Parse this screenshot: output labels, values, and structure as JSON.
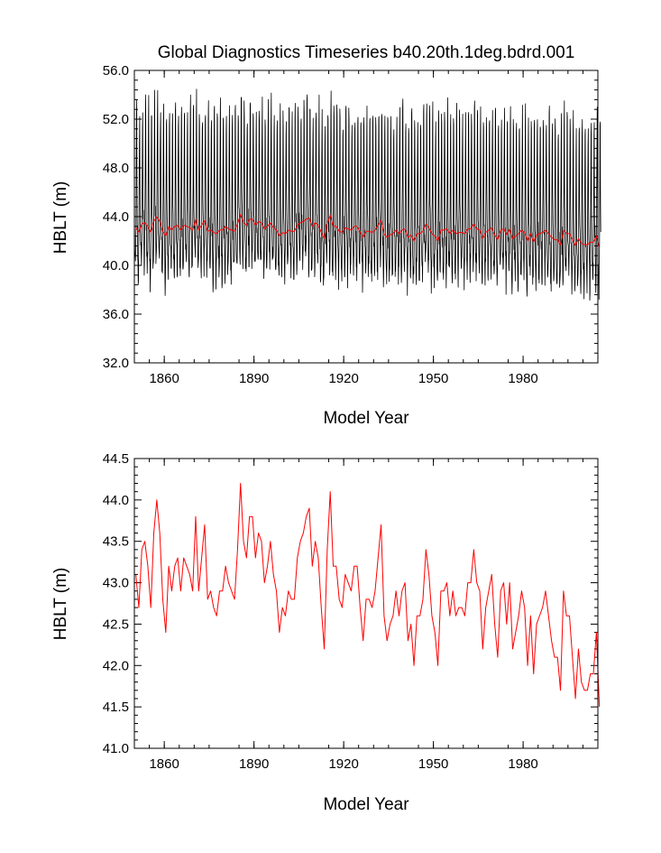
{
  "chart_data": [
    {
      "type": "line",
      "title": "Global Diagnostics Timeseries b40.20th.1deg.bdrd.001",
      "xlabel": "Model Year",
      "ylabel": "HBLT (m)",
      "xlim": [
        1850,
        2005
      ],
      "ylim": [
        32.0,
        56.0
      ],
      "xticks": [
        1860,
        1890,
        1920,
        1950,
        1980
      ],
      "xtick_labels": [
        "1860",
        "1890",
        "1920",
        "1950",
        "1980"
      ],
      "yticks": [
        32.0,
        36.0,
        40.0,
        44.0,
        48.0,
        52.0,
        56.0
      ],
      "ytick_labels": [
        "32.0",
        "36.0",
        "40.0",
        "44.0",
        "48.0",
        "52.0",
        "56.0"
      ],
      "series": [
        {
          "resolution": "monthly",
          "color": "#000000",
          "annual_cycle_multiplier": [
            -0.2,
            -1.4,
            -2.6,
            -3.6,
            -3.2,
            -1.6,
            0.6,
            4.4,
            8.8,
            9.6,
            3.0,
            0.4
          ],
          "monthly_noise_amplitude": 1.3
        },
        {
          "resolution": "annual",
          "color": "#ff0000",
          "same_as_panel": 2
        }
      ]
    },
    {
      "type": "line",
      "title": "",
      "xlabel": "Model Year",
      "ylabel": "HBLT (m)",
      "xlim": [
        1850,
        2005
      ],
      "ylim": [
        41.0,
        44.5
      ],
      "xticks": [
        1860,
        1890,
        1920,
        1950,
        1980
      ],
      "xtick_labels": [
        "1860",
        "1890",
        "1920",
        "1950",
        "1980"
      ],
      "yticks": [
        41.0,
        41.5,
        42.0,
        42.5,
        43.0,
        43.5,
        44.0,
        44.5
      ],
      "ytick_labels": [
        "41.0",
        "41.5",
        "42.0",
        "42.5",
        "43.0",
        "43.5",
        "44.0",
        "44.5"
      ],
      "series": [
        {
          "resolution": "annual",
          "color": "#ff0000",
          "x_start": 1850,
          "values": [
            43.1,
            42.7,
            43.4,
            43.5,
            43.2,
            42.7,
            43.6,
            44.0,
            43.6,
            42.8,
            42.4,
            43.2,
            42.9,
            43.2,
            43.3,
            42.9,
            43.3,
            43.2,
            43.1,
            42.9,
            43.8,
            42.9,
            43.3,
            43.7,
            42.8,
            42.9,
            42.7,
            42.6,
            42.9,
            42.9,
            43.2,
            43.0,
            42.9,
            42.8,
            43.4,
            44.2,
            43.5,
            43.3,
            43.8,
            43.8,
            43.3,
            43.6,
            43.5,
            43.0,
            43.2,
            43.5,
            43.1,
            42.9,
            42.4,
            42.7,
            42.6,
            42.9,
            42.8,
            42.8,
            43.3,
            43.5,
            43.6,
            43.8,
            43.9,
            43.2,
            43.5,
            43.3,
            42.7,
            42.2,
            43.4,
            44.1,
            43.2,
            43.2,
            42.8,
            42.7,
            43.1,
            43.0,
            42.9,
            43.2,
            43.2,
            42.7,
            42.3,
            42.8,
            42.8,
            42.7,
            42.9,
            43.3,
            43.7,
            42.6,
            42.3,
            42.5,
            42.6,
            42.9,
            42.6,
            42.9,
            43.0,
            42.3,
            42.5,
            42.0,
            42.6,
            42.6,
            42.8,
            43.4,
            43.1,
            42.6,
            42.4,
            42.0,
            42.9,
            42.9,
            43.0,
            42.6,
            42.9,
            42.6,
            42.7,
            42.7,
            42.6,
            43.0,
            43.0,
            43.4,
            43.0,
            42.9,
            42.2,
            42.7,
            42.9,
            43.1,
            42.5,
            42.1,
            42.9,
            43.0,
            42.5,
            43.0,
            42.2,
            42.4,
            42.6,
            42.9,
            42.7,
            42.0,
            42.6,
            41.9,
            42.5,
            42.6,
            42.7,
            42.9,
            42.6,
            42.3,
            42.1,
            42.1,
            41.7,
            42.9,
            42.6,
            42.6,
            42.1,
            41.6,
            42.2,
            41.8,
            41.7,
            41.7,
            41.9,
            41.9,
            42.4,
            41.5
          ]
        }
      ]
    }
  ]
}
